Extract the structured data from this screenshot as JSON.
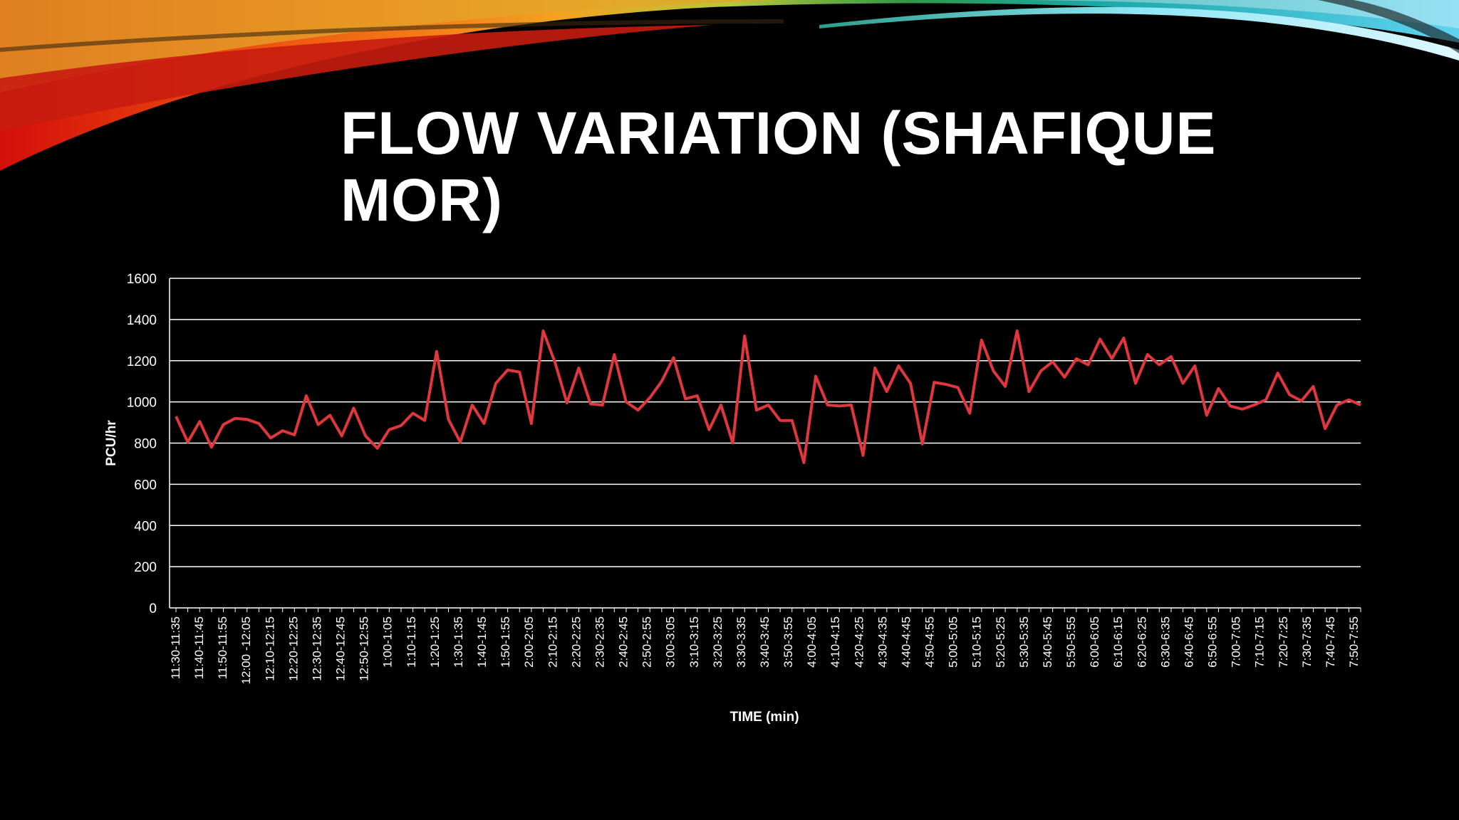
{
  "slide": {
    "title": "FLOW VARIATION (SHAFIQUE MOR)"
  },
  "colors": {
    "background": "#000000",
    "line": "#e0363c",
    "grid": "#ffffff",
    "text": "#ffffff"
  },
  "chart_data": {
    "type": "line",
    "title": "",
    "xlabel": "TIME (min)",
    "ylabel": "PCU/hr",
    "ylim": [
      0,
      1600
    ],
    "yticks": [
      0,
      200,
      400,
      600,
      800,
      1000,
      1200,
      1400,
      1600
    ],
    "grid": true,
    "legend": "none",
    "tick_labels": [
      "11:30-11:35",
      "11:40-11:45",
      "11:50-11:55",
      "12:00 -12:05",
      "12:10-12:15",
      "12:20-12:25",
      "12:30-12:35",
      "12:40-12:45",
      "12:50-12:55",
      "1:00-1:05",
      "1:10-1:15",
      "1:20-1:25",
      "1:30-1:35",
      "1:40-1:45",
      "1:50-1:55",
      "2:00-2:05",
      "2:10-2:15",
      "2:20-2:25",
      "2:30-2:35",
      "2:40-2:45",
      "2:50-2:55",
      "3:00-3:05",
      "3:10-3:15",
      "3:20-3:25",
      "3:30-3:35",
      "3:40-3:45",
      "3:50-3:55",
      "4:00-4:05",
      "4:10-4:15",
      "4:20-4:25",
      "4:30-4:35",
      "4:40-4:45",
      "4:50-4:55",
      "5:00-5:05",
      "5:10-5:15",
      "5:20-5:25",
      "5:30-5:35",
      "5:40-5:45",
      "5:50-5:55",
      "6:00-6:05",
      "6:10-6:15",
      "6:20-6:25",
      "6:30-6:35",
      "6:40-6:45",
      "6:50-6:55",
      "7:00-7:05",
      "7:10-7:15",
      "7:20-7:25",
      "7:30-7:35",
      "7:40-7:45",
      "7:50-7:55"
    ],
    "series": [
      {
        "values": [
          930,
          805,
          905,
          780,
          890,
          920,
          915,
          895,
          825,
          860,
          840,
          1030,
          890,
          935,
          835,
          970,
          835,
          775,
          865,
          885,
          945,
          910,
          1245,
          915,
          805,
          985,
          895,
          1090,
          1155,
          1145,
          895,
          1345,
          1190,
          995,
          1165,
          990,
          985,
          1230,
          1000,
          960,
          1020,
          1100,
          1215,
          1015,
          1030,
          865,
          985,
          800,
          1320,
          960,
          985,
          910,
          910,
          705,
          1125,
          985,
          980,
          985,
          740,
          1165,
          1050,
          1175,
          1090,
          795,
          1095,
          1085,
          1070,
          945,
          1300,
          1150,
          1075,
          1345,
          1050,
          1150,
          1195,
          1120,
          1210,
          1180,
          1305,
          1210,
          1310,
          1090,
          1230,
          1180,
          1220,
          1090,
          1175,
          935,
          1065,
          980,
          965,
          985,
          1010,
          1140,
          1035,
          1005,
          1075,
          870,
          985,
          1010,
          985
        ]
      }
    ]
  }
}
